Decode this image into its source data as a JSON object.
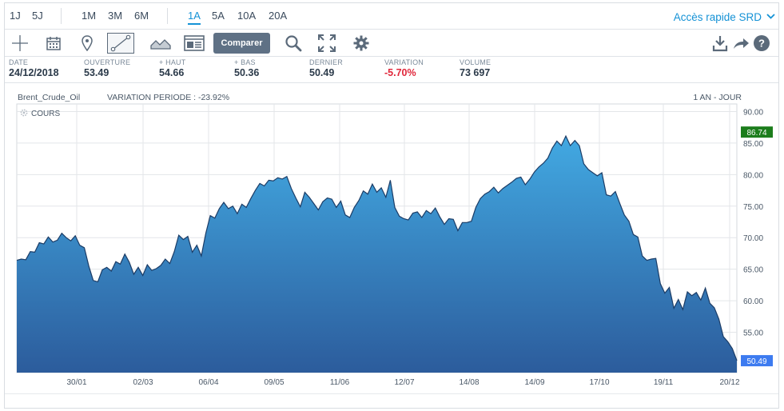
{
  "periods": [
    "1J",
    "5J",
    "1M",
    "3M",
    "6M",
    "1A",
    "5A",
    "10A",
    "20A"
  ],
  "active_period": "1A",
  "quick_access": "Accès rapide SRD",
  "compare_label": "Comparer",
  "stats": [
    {
      "label": "DATE",
      "value": "24/12/2018"
    },
    {
      "label": "OUVERTURE",
      "value": "53.49"
    },
    {
      "label": "+ HAUT",
      "value": "54.66"
    },
    {
      "label": "+ BAS",
      "value": "50.36"
    },
    {
      "label": "DERNIER",
      "value": "50.49"
    },
    {
      "label": "VARIATION",
      "value": "-5.70%"
    },
    {
      "label": "VOLUME",
      "value": "73 697"
    }
  ],
  "chart_header": {
    "instrument": "Brent_Crude_Oil",
    "variation_period": "VARIATION PERIODE : -23.92%",
    "timeframe": "1 AN - JOUR",
    "series_label": "COURS"
  },
  "colors": {
    "accent": "#1592d6",
    "negative": "#e0263a",
    "area_top": "#42a9e2",
    "area_bottom": "#2c5c9c",
    "line": "#1b3c66",
    "marker_high": "#1c7d1c",
    "marker_last": "#3d7bf0"
  },
  "chart_data": {
    "type": "area",
    "y_ticks": [
      50,
      55,
      60,
      65,
      70,
      75,
      80,
      85,
      90
    ],
    "y_tick_labels": [
      "",
      "55.00",
      "60.00",
      "65.00",
      "70.00",
      "75.00",
      "80.00",
      "85.00",
      "90.00"
    ],
    "ylim": [
      48.6,
      91.2
    ],
    "x_tick_labels": [
      "30/01",
      "02/03",
      "06/04",
      "09/05",
      "11/06",
      "12/07",
      "14/08",
      "14/09",
      "17/10",
      "19/11",
      "20/12"
    ],
    "high_marker": "86.74",
    "last_marker": "50.49",
    "values": [
      66.4,
      66.6,
      66.5,
      67.8,
      67.7,
      69.2,
      69.0,
      70.1,
      69.3,
      69.6,
      70.7,
      70.0,
      69.5,
      70.3,
      68.8,
      68.4,
      65.5,
      63.2,
      63.0,
      64.9,
      65.3,
      64.7,
      66.2,
      65.8,
      67.4,
      66.1,
      64.2,
      65.3,
      64.0,
      65.7,
      64.8,
      65.1,
      65.6,
      66.6,
      65.9,
      67.8,
      70.4,
      69.7,
      70.2,
      67.7,
      68.8,
      67.1,
      70.7,
      73.5,
      73.1,
      74.6,
      75.6,
      74.6,
      75.0,
      73.8,
      75.3,
      74.8,
      76.2,
      77.5,
      78.6,
      78.2,
      79.1,
      79.0,
      79.5,
      79.3,
      79.7,
      77.8,
      76.3,
      74.9,
      77.2,
      76.4,
      75.4,
      74.4,
      75.7,
      76.3,
      76.1,
      74.8,
      75.8,
      73.6,
      73.2,
      74.8,
      75.9,
      77.4,
      76.9,
      78.5,
      77.2,
      77.9,
      76.4,
      79.1,
      74.8,
      73.4,
      73.0,
      72.8,
      73.9,
      74.1,
      73.2,
      74.3,
      73.8,
      74.7,
      73.3,
      72.1,
      73.0,
      72.9,
      71.1,
      72.4,
      72.4,
      72.6,
      74.8,
      76.2,
      76.9,
      77.3,
      78.0,
      77.1,
      77.8,
      78.3,
      78.8,
      79.4,
      79.6,
      78.4,
      79.3,
      80.4,
      81.2,
      81.8,
      82.6,
      84.2,
      85.3,
      84.6,
      86.1,
      84.6,
      85.4,
      84.6,
      81.7,
      80.8,
      80.3,
      79.8,
      80.3,
      76.8,
      76.6,
      77.3,
      75.4,
      73.6,
      72.6,
      70.5,
      70.1,
      67.1,
      66.4,
      66.6,
      66.7,
      62.7,
      61.2,
      62.1,
      58.8,
      60.2,
      58.6,
      61.4,
      60.8,
      61.3,
      60.1,
      62.0,
      59.6,
      58.9,
      57.1,
      54.3,
      53.5,
      52.4,
      50.5
    ],
    "xlabel": "",
    "ylabel": ""
  }
}
